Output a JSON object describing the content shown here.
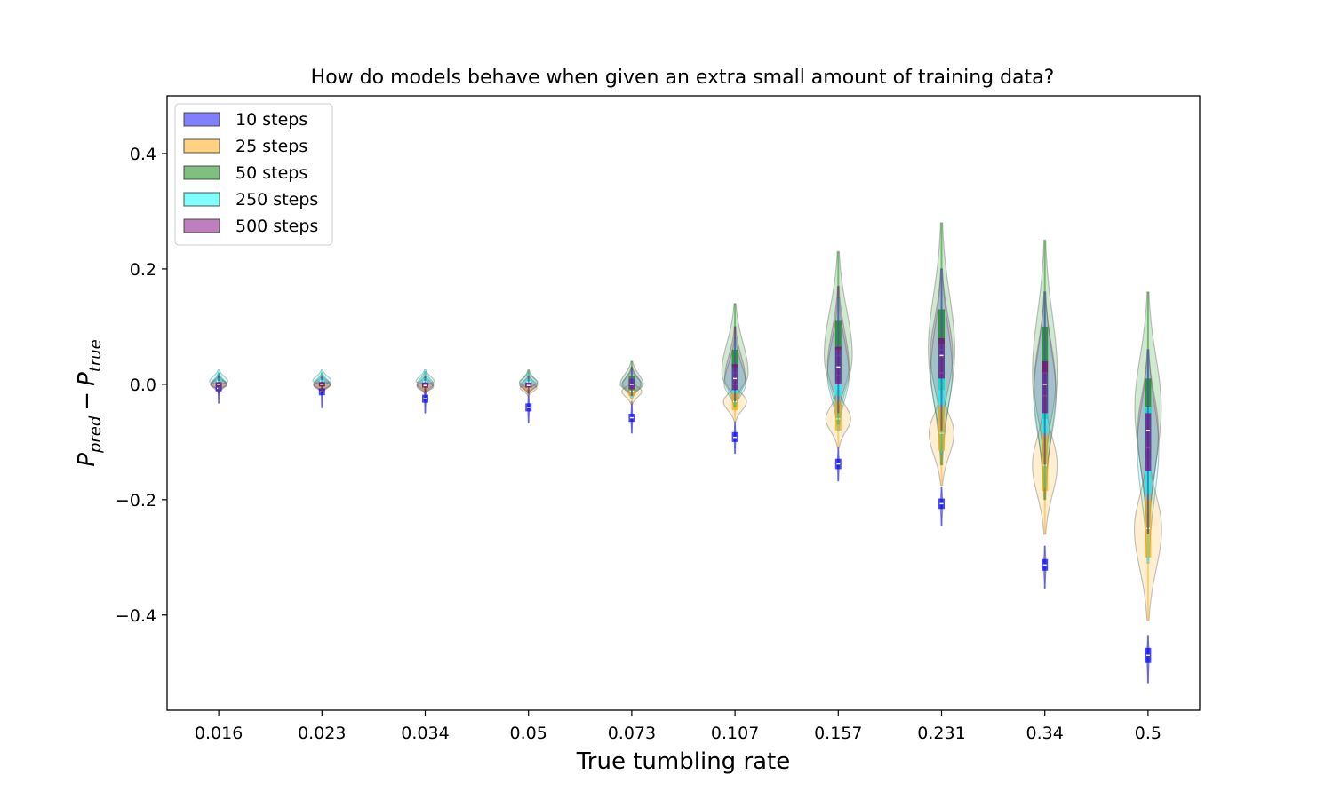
{
  "chart_data": {
    "type": "violin",
    "title": "How do models behave when given an extra small amount of training data?",
    "xlabel": "True tumbling rate",
    "ylabel_main": "P",
    "ylabel_sub_pred": "pred",
    "ylabel_minus": "−",
    "ylabel_sub_true": "true",
    "categories": [
      "0.016",
      "0.023",
      "0.034",
      "0.05",
      "0.073",
      "0.107",
      "0.157",
      "0.231",
      "0.34",
      "0.5"
    ],
    "ylim": [
      -0.565,
      0.5
    ],
    "yticks": [
      -0.4,
      -0.2,
      0.0,
      0.2,
      0.4
    ],
    "ytick_labels": [
      "−0.4",
      "−0.2",
      "0.0",
      "0.2",
      "0.4"
    ],
    "grid": false,
    "legend_position": "top-left",
    "series": [
      {
        "name": "10 steps",
        "color": "#0000ff",
        "median": [
          -0.007,
          -0.013,
          -0.025,
          -0.04,
          -0.058,
          -0.092,
          -0.138,
          -0.207,
          -0.313,
          -0.47
        ],
        "q1": [
          -0.012,
          -0.019,
          -0.032,
          -0.047,
          -0.065,
          -0.1,
          -0.147,
          -0.216,
          -0.323,
          -0.483
        ],
        "q3": [
          -0.002,
          -0.007,
          -0.018,
          -0.033,
          -0.051,
          -0.083,
          -0.129,
          -0.198,
          -0.303,
          -0.457
        ],
        "min": [
          -0.033,
          -0.041,
          -0.05,
          -0.067,
          -0.085,
          -0.12,
          -0.168,
          -0.245,
          -0.355,
          -0.518
        ],
        "max": [
          0.018,
          0.012,
          0.003,
          -0.015,
          -0.03,
          -0.065,
          -0.11,
          -0.178,
          -0.28,
          -0.435
        ],
        "spread": [
          0.018,
          0.02,
          0.022,
          0.024,
          0.026,
          0.028,
          0.03,
          0.034,
          0.036,
          0.04
        ]
      },
      {
        "name": "25 steps",
        "color": "#ffa500",
        "median": [
          0.0,
          -0.002,
          -0.004,
          -0.006,
          -0.012,
          -0.03,
          -0.06,
          -0.085,
          -0.14,
          -0.25
        ],
        "q1": [
          -0.004,
          -0.006,
          -0.008,
          -0.01,
          -0.02,
          -0.045,
          -0.08,
          -0.115,
          -0.185,
          -0.3
        ],
        "q3": [
          0.004,
          0.003,
          0.001,
          -0.002,
          -0.004,
          -0.015,
          -0.03,
          -0.04,
          -0.09,
          -0.2
        ],
        "min": [
          -0.012,
          -0.014,
          -0.016,
          -0.02,
          -0.035,
          -0.065,
          -0.11,
          -0.175,
          -0.26,
          -0.41
        ],
        "max": [
          0.012,
          0.01,
          0.008,
          0.006,
          0.005,
          0.0,
          -0.01,
          -0.01,
          -0.03,
          -0.12
        ],
        "spread": [
          0.2,
          0.2,
          0.2,
          0.2,
          0.24,
          0.28,
          0.3,
          0.3,
          0.3,
          0.33
        ]
      },
      {
        "name": "50 steps",
        "color": "#008000",
        "median": [
          0.0,
          0.0,
          0.0,
          0.0,
          0.0,
          0.02,
          0.05,
          0.06,
          0.02,
          -0.04
        ],
        "q1": [
          -0.003,
          -0.003,
          -0.003,
          -0.004,
          -0.01,
          -0.01,
          0.005,
          -0.01,
          -0.06,
          -0.13
        ],
        "q3": [
          0.003,
          0.003,
          0.003,
          0.004,
          0.015,
          0.06,
          0.11,
          0.13,
          0.1,
          0.01
        ],
        "min": [
          -0.01,
          -0.012,
          -0.013,
          -0.015,
          -0.02,
          -0.04,
          -0.07,
          -0.14,
          -0.2,
          -0.26
        ],
        "max": [
          0.02,
          0.02,
          0.022,
          0.025,
          0.04,
          0.14,
          0.23,
          0.28,
          0.25,
          0.16
        ],
        "spread": [
          0.18,
          0.2,
          0.2,
          0.22,
          0.28,
          0.32,
          0.34,
          0.32,
          0.3,
          0.32
        ]
      },
      {
        "name": "250 steps",
        "color": "#00ffff",
        "median": [
          0.005,
          0.006,
          0.005,
          0.004,
          0.0,
          0.0,
          0.015,
          0.02,
          -0.02,
          -0.11
        ],
        "q1": [
          0.002,
          0.003,
          0.002,
          0.0,
          -0.008,
          -0.015,
          -0.02,
          -0.035,
          -0.085,
          -0.19
        ],
        "q3": [
          0.01,
          0.01,
          0.01,
          0.008,
          0.01,
          0.03,
          0.06,
          0.07,
          0.02,
          -0.04
        ],
        "min": [
          -0.002,
          -0.002,
          -0.003,
          -0.01,
          -0.025,
          -0.04,
          -0.08,
          -0.12,
          -0.18,
          -0.31
        ],
        "max": [
          0.025,
          0.025,
          0.025,
          0.02,
          0.025,
          0.08,
          0.15,
          0.2,
          0.16,
          0.06
        ],
        "spread": [
          0.22,
          0.22,
          0.22,
          0.22,
          0.24,
          0.26,
          0.26,
          0.26,
          0.27,
          0.26
        ]
      },
      {
        "name": "500 steps",
        "color": "#800080",
        "median": [
          0.0,
          0.0,
          -0.002,
          -0.002,
          0.0,
          0.01,
          0.03,
          0.05,
          0.0,
          -0.08
        ],
        "q1": [
          -0.004,
          -0.004,
          -0.006,
          -0.006,
          -0.008,
          -0.01,
          0.0,
          0.01,
          -0.05,
          -0.15
        ],
        "q3": [
          0.004,
          0.004,
          0.003,
          0.003,
          0.01,
          0.035,
          0.065,
          0.08,
          0.04,
          -0.05
        ],
        "min": [
          -0.015,
          -0.015,
          -0.016,
          -0.016,
          -0.02,
          -0.03,
          -0.05,
          -0.08,
          -0.14,
          -0.26
        ],
        "max": [
          0.015,
          0.015,
          0.015,
          0.015,
          0.03,
          0.1,
          0.17,
          0.2,
          0.16,
          0.06
        ],
        "spread": [
          0.2,
          0.2,
          0.2,
          0.2,
          0.22,
          0.25,
          0.26,
          0.27,
          0.26,
          0.25
        ]
      }
    ]
  }
}
